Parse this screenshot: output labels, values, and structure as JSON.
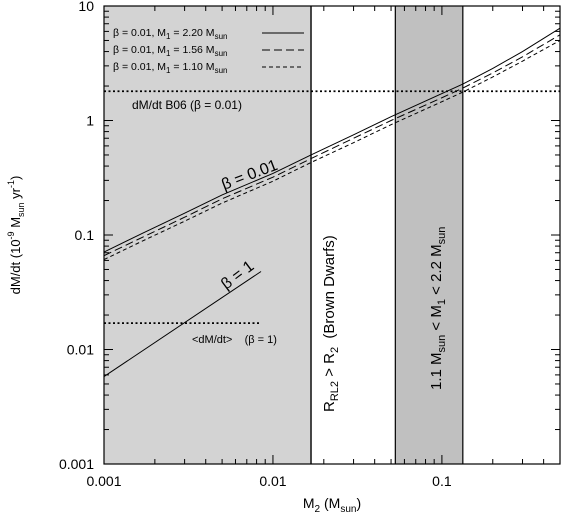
{
  "chart_data": {
    "type": "line",
    "xlabel": {
      "main": "M",
      "sub": "2",
      "rest": " (M",
      "sub2": "sun",
      "end": ")"
    },
    "ylabel": {
      "a": "dM/dt (10",
      "sup": "-9",
      "b": " M",
      "sub": "sun",
      "c": " yr",
      "sup2": "-1",
      "d": ")"
    },
    "xscale": "log",
    "yscale": "log",
    "xlim": [
      0.001,
      0.5
    ],
    "ylim": [
      0.001,
      10
    ],
    "x_ticks": [
      0.001,
      0.01,
      0.1
    ],
    "x_tick_labels": [
      "0.001",
      "0.01",
      "0.1"
    ],
    "y_ticks": [
      0.001,
      0.01,
      0.1,
      1,
      10
    ],
    "y_tick_labels": [
      "0.001",
      "0.01",
      "0.1",
      "1",
      "10"
    ],
    "legend_position": "top-left",
    "series": [
      {
        "name": "β = 0.01, M1 = 2.20 Msun",
        "legend": {
          "pre": "β = 0.01, M",
          "sub": "1",
          "mid": " = 2.20 M",
          "sub2": "sun"
        },
        "style": "solid",
        "x": [
          0.001,
          0.0017,
          0.003,
          0.005,
          0.01,
          0.0168,
          0.03,
          0.05,
          0.1,
          0.133,
          0.2,
          0.3,
          0.5
        ],
        "values": [
          0.071,
          0.104,
          0.155,
          0.224,
          0.345,
          0.5,
          0.75,
          1.08,
          1.72,
          2.08,
          2.85,
          4.0,
          6.4
        ]
      },
      {
        "name": "β = 0.01, M1 = 1.56 Msun",
        "legend": {
          "pre": "β = 0.01, M",
          "sub": "1",
          "mid": " = 1.56 M",
          "sub2": "sun"
        },
        "style": "long-dash",
        "x": [
          0.001,
          0.0017,
          0.003,
          0.005,
          0.01,
          0.0168,
          0.03,
          0.05,
          0.1,
          0.133,
          0.2,
          0.3,
          0.5
        ],
        "values": [
          0.066,
          0.096,
          0.143,
          0.207,
          0.32,
          0.465,
          0.7,
          1.0,
          1.58,
          1.92,
          2.6,
          3.6,
          5.6
        ]
      },
      {
        "name": "β = 0.01, M1 = 1.10 Msun",
        "legend": {
          "pre": "β = 0.01, M",
          "sub": "1",
          "mid": " = 1.10 M",
          "sub2": "sun"
        },
        "style": "short-dash",
        "x": [
          0.001,
          0.0017,
          0.003,
          0.005,
          0.01,
          0.0168,
          0.03,
          0.05,
          0.1,
          0.133,
          0.2,
          0.3,
          0.5
        ],
        "values": [
          0.061,
          0.089,
          0.132,
          0.19,
          0.295,
          0.43,
          0.64,
          0.92,
          1.46,
          1.77,
          2.4,
          3.3,
          5.0
        ]
      },
      {
        "name": "β = 1",
        "style": "solid",
        "x": [
          0.001,
          0.0085
        ],
        "values": [
          0.0058,
          0.048
        ]
      }
    ],
    "reference_lines": [
      {
        "label": "dM/dt B06 (β = 0.01)",
        "y": 1.8,
        "x_range": [
          0.001,
          0.5
        ],
        "style": "dotted"
      },
      {
        "label": "<dM/dt>    (β = 1)",
        "y": 0.017,
        "x_range": [
          0.001,
          0.0085
        ],
        "style": "dotted"
      }
    ],
    "regions": [
      {
        "x_range": [
          0.001,
          0.0168
        ],
        "color": "#d3d3d3",
        "label": {
          "pre": "R",
          "sub": "RL2",
          "mid": " > R",
          "sub2": "2",
          "post": "  (Brown Dwarfs)"
        }
      },
      {
        "x_range": [
          0.053,
          0.133
        ],
        "color": "#c0c0c0",
        "label": {
          "a": "1.1 M",
          "sub": "sun",
          "b": " < M",
          "sub2": "1",
          "c": " < 2.2 M",
          "sub3": "sun"
        }
      }
    ],
    "annotations": [
      {
        "text": "β = 0.01"
      },
      {
        "text": "β = 1"
      }
    ]
  }
}
